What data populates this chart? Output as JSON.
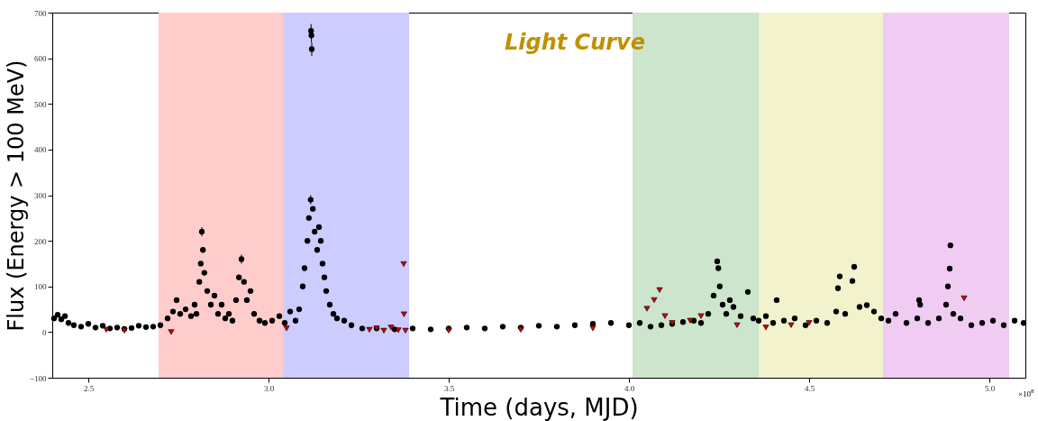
{
  "chart_data": {
    "type": "scatter",
    "title": "Light Curve",
    "xlabel": "Time (days, MJD)",
    "ylabel": "Flux (Energy > 100 MeV)",
    "annotations": [
      "×10$^{8}$"
    ],
    "xlim": [
      2.4,
      5.1
    ],
    "ylim": [
      -100,
      700
    ],
    "xticks": [
      2.5,
      {
        "value": 3,
        "label": "3.0"
      },
      3.5,
      {
        "value": 4,
        "label": "4.0"
      },
      4.5,
      {
        "value": 5,
        "label": "5.0"
      }
    ],
    "yticks": [
      {
        "value": -100,
        "label": "−100"
      },
      0,
      100,
      200,
      300,
      400,
      500,
      600,
      700
    ],
    "grid": false,
    "bands": [
      {
        "axis": "x",
        "from": 2.695,
        "to": 3.04,
        "color": "#ffcccc"
      },
      {
        "axis": "x",
        "from": 3.04,
        "to": 3.39,
        "color": "#ccccff"
      },
      {
        "axis": "x",
        "from": 4.01,
        "to": 4.36,
        "color": "#cce5cc"
      },
      {
        "axis": "x",
        "from": 4.36,
        "to": 4.705,
        "color": "#f2f2cc"
      },
      {
        "axis": "x",
        "from": 4.705,
        "to": 5.055,
        "color": "#f0ccf2"
      }
    ],
    "series": [
      {
        "color": "#000000",
        "marker": "circle",
        "x": [
          2.405,
          2.415,
          2.425,
          2.435,
          2.445,
          2.46,
          2.48,
          2.5,
          2.52,
          2.54,
          2.56,
          2.58,
          2.6,
          2.62,
          2.64,
          2.66,
          2.68,
          2.7,
          2.72,
          2.735,
          2.745,
          2.755,
          2.77,
          2.785,
          2.795,
          2.8,
          2.808,
          2.812,
          2.815,
          2.818,
          2.822,
          2.83,
          2.84,
          2.85,
          2.86,
          2.87,
          2.88,
          2.89,
          2.9,
          2.91,
          2.918,
          2.925,
          2.932,
          2.94,
          2.95,
          2.96,
          2.975,
          2.99,
          3.01,
          3.03,
          3.045,
          3.06,
          3.075,
          3.085,
          3.095,
          3.1,
          3.108,
          3.112,
          3.117,
          3.118,
          3.119,
          3.12,
          3.123,
          3.128,
          3.135,
          3.14,
          3.145,
          3.15,
          3.155,
          3.16,
          3.17,
          3.18,
          3.19,
          3.21,
          3.23,
          3.26,
          3.3,
          3.35,
          3.4,
          3.45,
          3.5,
          3.55,
          3.6,
          3.65,
          3.7,
          3.75,
          3.8,
          3.85,
          3.9,
          3.95,
          4.0,
          4.03,
          4.06,
          4.09,
          4.12,
          4.15,
          4.18,
          4.2,
          4.22,
          4.235,
          4.245,
          4.248,
          4.252,
          4.26,
          4.27,
          4.28,
          4.29,
          4.31,
          4.33,
          4.345,
          4.36,
          4.38,
          4.4,
          4.41,
          4.43,
          4.46,
          4.49,
          4.52,
          4.55,
          4.575,
          4.58,
          4.585,
          4.6,
          4.62,
          4.625,
          4.64,
          4.66,
          4.68,
          4.7,
          4.72,
          4.74,
          4.77,
          4.8,
          4.805,
          4.808,
          4.83,
          4.86,
          4.88,
          4.885,
          4.89,
          4.892,
          4.9,
          4.92,
          4.95,
          4.98,
          5.01,
          5.04,
          5.07,
          5.095
        ],
        "values": [
          30,
          38,
          28,
          35,
          20,
          15,
          12,
          18,
          10,
          14,
          8,
          10,
          7,
          9,
          14,
          11,
          12,
          15,
          30,
          45,
          70,
          40,
          50,
          35,
          60,
          40,
          110,
          150,
          220,
          180,
          130,
          90,
          60,
          80,
          40,
          60,
          30,
          40,
          25,
          70,
          120,
          160,
          110,
          70,
          90,
          40,
          25,
          20,
          25,
          35,
          20,
          45,
          25,
          50,
          100,
          140,
          200,
          250,
          290,
          660,
          650,
          620,
          270,
          220,
          180,
          230,
          200,
          150,
          120,
          90,
          60,
          40,
          30,
          25,
          15,
          8,
          8,
          6,
          8,
          6,
          8,
          10,
          8,
          12,
          10,
          14,
          12,
          15,
          18,
          20,
          15,
          20,
          12,
          15,
          18,
          22,
          25,
          20,
          40,
          80,
          155,
          140,
          100,
          60,
          40,
          70,
          55,
          35,
          88,
          30,
          25,
          35,
          20,
          70,
          25,
          30,
          15,
          25,
          20,
          45,
          96,
          122,
          40,
          112,
          143,
          55,
          59,
          45,
          30,
          25,
          40,
          20,
          30,
          70,
          60,
          20,
          30,
          60,
          100,
          139,
          190,
          40,
          30,
          15,
          20,
          25,
          15,
          25,
          20
        ],
        "errors": [
          null,
          null,
          null,
          null,
          null,
          null,
          null,
          null,
          null,
          null,
          null,
          null,
          null,
          null,
          null,
          null,
          null,
          null,
          null,
          null,
          null,
          null,
          null,
          null,
          null,
          null,
          null,
          null,
          10,
          null,
          null,
          null,
          null,
          null,
          null,
          null,
          null,
          null,
          null,
          null,
          null,
          10,
          null,
          null,
          null,
          null,
          null,
          null,
          null,
          null,
          null,
          null,
          null,
          null,
          null,
          null,
          null,
          null,
          10,
          15,
          15,
          15,
          null,
          null,
          null,
          null,
          null,
          null,
          null,
          null,
          null,
          null,
          null,
          null,
          null,
          null,
          null,
          null,
          null,
          null,
          null,
          null,
          null,
          null,
          null,
          null,
          null,
          null,
          null,
          null,
          null,
          null,
          null,
          null,
          null,
          null,
          null,
          null,
          null,
          null,
          null,
          null,
          null,
          null,
          null,
          null,
          null,
          null,
          null,
          null,
          null,
          null,
          null,
          null,
          null,
          null,
          null,
          null,
          null,
          null,
          null,
          null,
          null,
          null,
          null,
          null,
          null,
          null,
          null,
          null,
          null,
          null,
          null,
          null,
          null,
          null,
          null,
          null,
          null,
          null,
          null,
          null,
          null,
          null,
          null,
          null,
          null,
          null,
          null
        ]
      },
      {
        "color": "#cc0000",
        "marker": "triangle",
        "x": [
          2.55,
          2.6,
          2.73,
          3.05,
          3.28,
          3.3,
          3.32,
          3.34,
          3.36,
          3.375,
          3.376,
          3.38,
          3.5,
          3.7,
          3.9,
          4.05,
          4.07,
          4.085,
          4.1,
          4.12,
          4.17,
          4.2,
          4.3,
          4.38,
          4.45,
          4.5,
          4.93
        ],
        "values": [
          5,
          3,
          0,
          8,
          5,
          8,
          3,
          10,
          4,
          149,
          39,
          3,
          3,
          5,
          8,
          51,
          70,
          92,
          35,
          20,
          25,
          35,
          15,
          10,
          15,
          20,
          74
        ]
      }
    ]
  }
}
